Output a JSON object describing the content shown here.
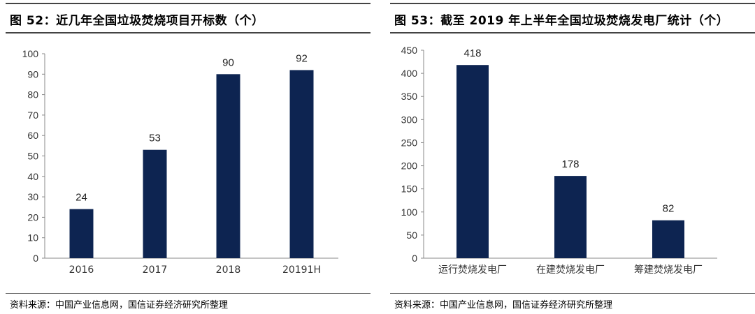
{
  "colors": {
    "bar": "#0d2451",
    "axis": "#888888"
  },
  "left": {
    "title": "图 52：近几年全国垃圾焚烧项目开标数（个）",
    "source": "资料来源：中国产业信息网，国信证券经济研究所整理"
  },
  "right": {
    "title": "图 53：截至 2019 年上半年全国垃圾焚烧发电厂统计（个）",
    "source": "资料来源：中国产业信息网，国信证券经济研究所整理"
  },
  "chart_data": [
    {
      "type": "bar",
      "title": "图 52：近几年全国垃圾焚烧项目开标数（个）",
      "categories": [
        "2016",
        "2017",
        "2018",
        "20191H"
      ],
      "values": [
        24,
        53,
        90,
        92
      ],
      "ylim": [
        0,
        100
      ],
      "yticks": [
        0,
        10,
        20,
        30,
        40,
        50,
        60,
        70,
        80,
        90,
        100
      ],
      "grid": false,
      "legend": "none"
    },
    {
      "type": "bar",
      "title": "图 53：截至 2019 年上半年全国垃圾焚烧发电厂统计（个）",
      "categories": [
        "运行焚烧发电厂",
        "在建焚烧发电厂",
        "筹建焚烧发电厂"
      ],
      "values": [
        418,
        178,
        82
      ],
      "ylim": [
        0,
        450
      ],
      "yticks": [
        0,
        50,
        100,
        150,
        200,
        250,
        300,
        350,
        400,
        450
      ],
      "grid": false,
      "legend": "none"
    }
  ]
}
